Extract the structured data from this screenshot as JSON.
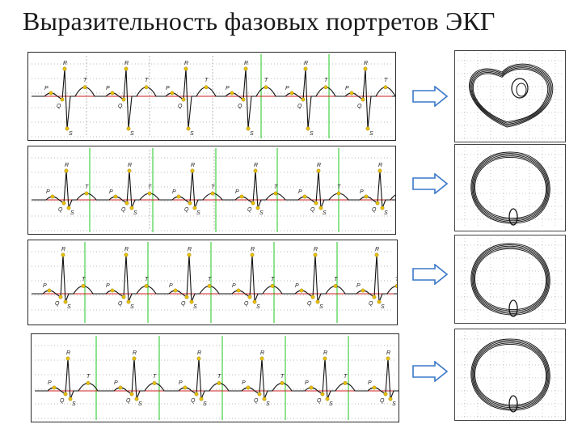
{
  "title": "Выразительность фазовых портретов ЭКГ",
  "wave_labels": {
    "P": "P",
    "Q": "Q",
    "R": "R",
    "S": "S",
    "T": "T"
  },
  "rows": [
    {
      "id": "row-1",
      "beats": 6,
      "portrait": "heart-shape"
    },
    {
      "id": "row-2",
      "beats": 6,
      "portrait": "oval-with-small-loop"
    },
    {
      "id": "row-3",
      "beats": 6,
      "portrait": "oval-with-small-loop"
    },
    {
      "id": "row-4",
      "beats": 6,
      "portrait": "oval-with-small-loop"
    }
  ],
  "colors": {
    "ecg_trace": "#111111",
    "baseline": "#cc2222",
    "grid_vertical": "#33cc33",
    "grid_dotted": "#777777",
    "wave_marker": "#e8c000",
    "arrow_fill": "#ffffff",
    "arrow_stroke": "#3a78c8",
    "portrait_trace": "#111111"
  }
}
